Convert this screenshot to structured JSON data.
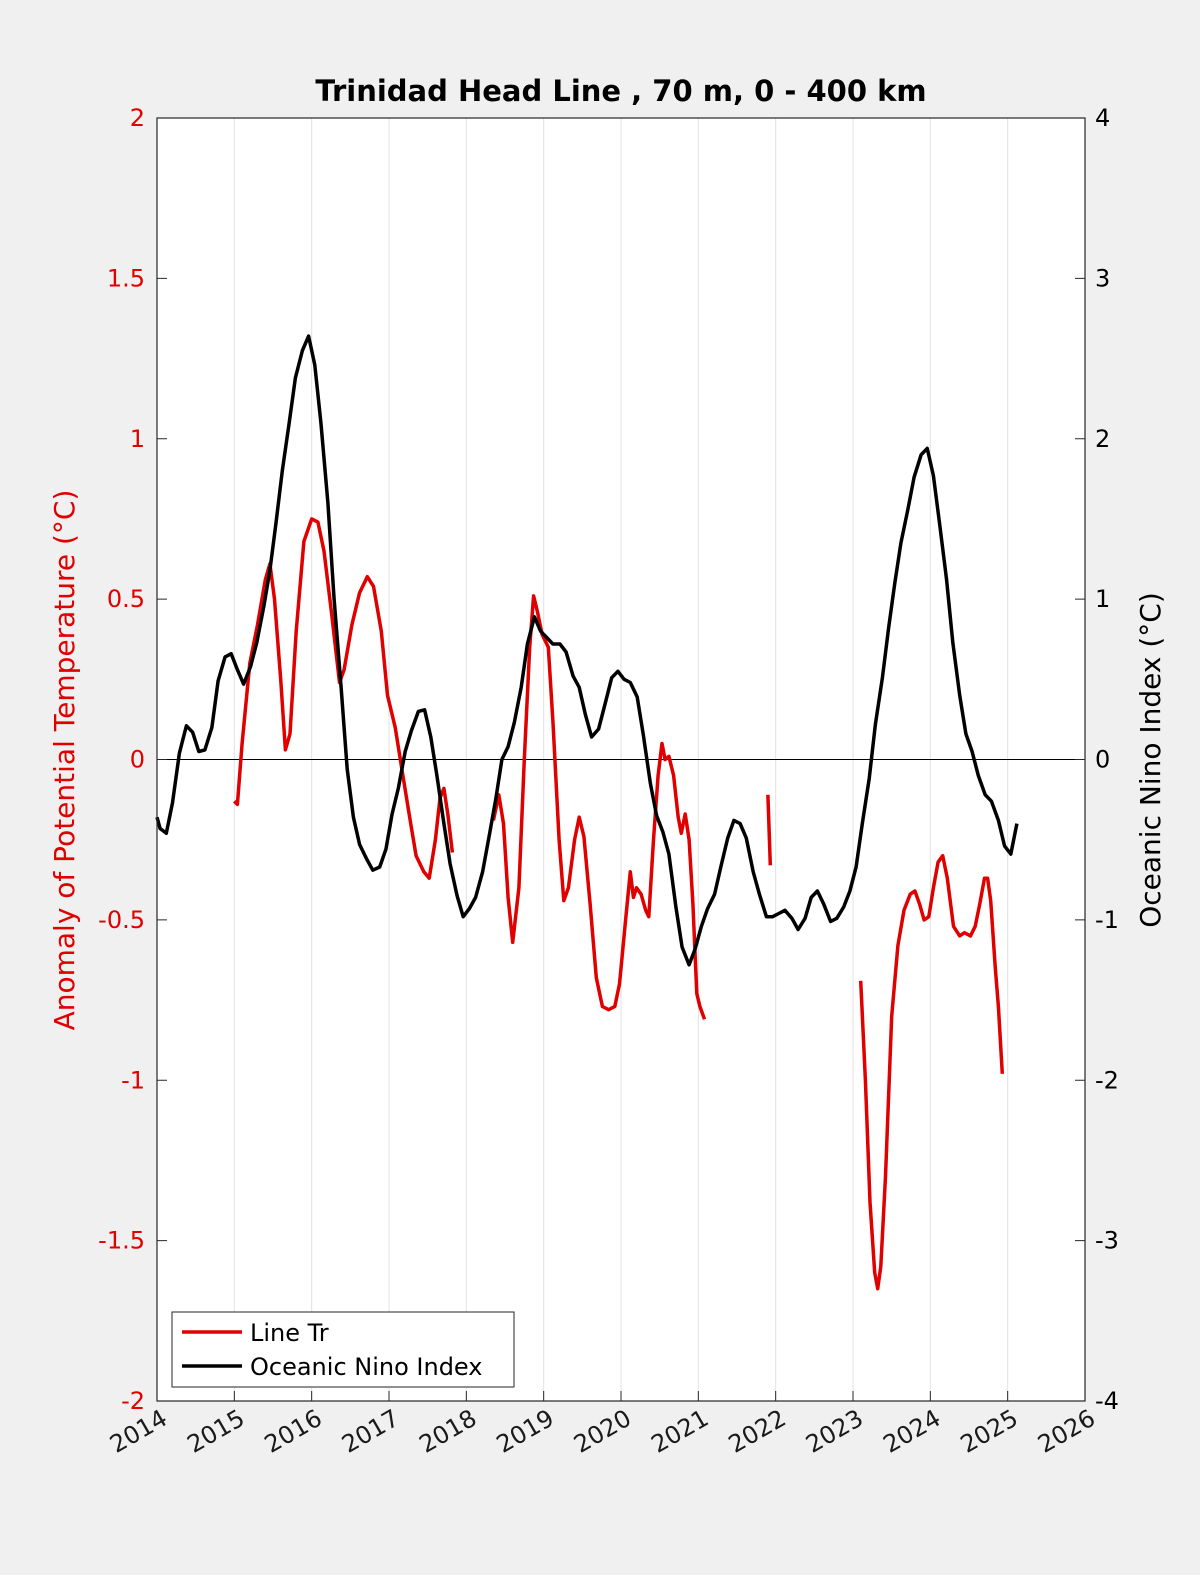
{
  "chart_data": {
    "type": "line",
    "title": "Trinidad Head Line , 70 m, 0 - 400 km",
    "ylabel_left": "Anomaly of Potential Temperature (°C)",
    "ylabel_right": "Oceanic Nino Index (°C)",
    "xlabel": "",
    "xlim": [
      2014,
      2026
    ],
    "ylim_left": [
      -2,
      2
    ],
    "ylim_right": [
      -4,
      4
    ],
    "x_ticks": [
      "2014",
      "2015",
      "2016",
      "2017",
      "2018",
      "2019",
      "2020",
      "2021",
      "2022",
      "2023",
      "2024",
      "2025",
      "2026"
    ],
    "y_ticks_left": [
      "-2",
      "-1.5",
      "-1",
      "-0.5",
      "0",
      "0.5",
      "1",
      "1.5",
      "2"
    ],
    "y_ticks_right": [
      "-4",
      "-3",
      "-2",
      "-1",
      "0",
      "1",
      "2",
      "3",
      "4"
    ],
    "grid": "vertical",
    "zero_line": true,
    "legend_position": "bottom-left",
    "colors": {
      "line_tr": "#e00000",
      "oni": "#000000"
    },
    "series": [
      {
        "name": "Line Tr",
        "axis": "left",
        "color": "#e00000",
        "segments": [
          [
            [
              2015.0,
              -0.13
            ],
            [
              2015.04,
              -0.14
            ],
            [
              2015.1,
              0.05
            ],
            [
              2015.2,
              0.3
            ],
            [
              2015.3,
              0.42
            ],
            [
              2015.4,
              0.56
            ],
            [
              2015.46,
              0.61
            ],
            [
              2015.52,
              0.5
            ],
            [
              2015.6,
              0.25
            ],
            [
              2015.66,
              0.03
            ],
            [
              2015.72,
              0.08
            ],
            [
              2015.8,
              0.4
            ],
            [
              2015.9,
              0.68
            ],
            [
              2016.0,
              0.75
            ],
            [
              2016.08,
              0.74
            ],
            [
              2016.16,
              0.65
            ],
            [
              2016.26,
              0.45
            ],
            [
              2016.36,
              0.24
            ],
            [
              2016.42,
              0.28
            ],
            [
              2016.52,
              0.42
            ],
            [
              2016.62,
              0.52
            ],
            [
              2016.72,
              0.57
            ],
            [
              2016.8,
              0.54
            ],
            [
              2016.9,
              0.4
            ],
            [
              2016.98,
              0.2
            ],
            [
              2017.08,
              0.1
            ],
            [
              2017.18,
              -0.05
            ],
            [
              2017.28,
              -0.2
            ],
            [
              2017.35,
              -0.3
            ],
            [
              2017.45,
              -0.35
            ],
            [
              2017.52,
              -0.37
            ],
            [
              2017.6,
              -0.25
            ],
            [
              2017.66,
              -0.12
            ],
            [
              2017.71,
              -0.09
            ],
            [
              2017.76,
              -0.17
            ],
            [
              2017.82,
              -0.29
            ]
          ],
          [
            [
              2018.35,
              -0.19
            ],
            [
              2018.42,
              -0.11
            ],
            [
              2018.48,
              -0.2
            ],
            [
              2018.54,
              -0.43
            ],
            [
              2018.6,
              -0.57
            ],
            [
              2018.68,
              -0.4
            ],
            [
              2018.75,
              0.0
            ],
            [
              2018.82,
              0.35
            ],
            [
              2018.87,
              0.51
            ],
            [
              2018.92,
              0.46
            ],
            [
              2018.98,
              0.39
            ],
            [
              2019.06,
              0.35
            ],
            [
              2019.12,
              0.12
            ],
            [
              2019.2,
              -0.25
            ],
            [
              2019.26,
              -0.44
            ],
            [
              2019.32,
              -0.4
            ],
            [
              2019.4,
              -0.25
            ],
            [
              2019.46,
              -0.18
            ],
            [
              2019.52,
              -0.24
            ],
            [
              2019.6,
              -0.45
            ],
            [
              2019.68,
              -0.68
            ],
            [
              2019.76,
              -0.77
            ],
            [
              2019.84,
              -0.78
            ],
            [
              2019.92,
              -0.77
            ],
            [
              2019.98,
              -0.7
            ],
            [
              2020.06,
              -0.5
            ],
            [
              2020.12,
              -0.35
            ],
            [
              2020.16,
              -0.43
            ],
            [
              2020.2,
              -0.4
            ],
            [
              2020.26,
              -0.42
            ],
            [
              2020.32,
              -0.47
            ],
            [
              2020.36,
              -0.49
            ],
            [
              2020.42,
              -0.25
            ],
            [
              2020.48,
              -0.05
            ],
            [
              2020.53,
              0.05
            ],
            [
              2020.57,
              0.0
            ],
            [
              2020.62,
              0.01
            ],
            [
              2020.68,
              -0.05
            ],
            [
              2020.74,
              -0.18
            ],
            [
              2020.78,
              -0.23
            ],
            [
              2020.83,
              -0.17
            ],
            [
              2020.88,
              -0.25
            ],
            [
              2020.93,
              -0.45
            ],
            [
              2020.98,
              -0.73
            ],
            [
              2021.02,
              -0.77
            ],
            [
              2021.08,
              -0.81
            ]
          ],
          [
            [
              2021.9,
              -0.11
            ],
            [
              2021.93,
              -0.33
            ]
          ],
          [
            [
              2023.1,
              -0.69
            ],
            [
              2023.16,
              -1.0
            ],
            [
              2023.22,
              -1.38
            ],
            [
              2023.28,
              -1.6
            ],
            [
              2023.32,
              -1.65
            ],
            [
              2023.36,
              -1.58
            ],
            [
              2023.42,
              -1.3
            ],
            [
              2023.5,
              -0.8
            ],
            [
              2023.58,
              -0.58
            ],
            [
              2023.66,
              -0.47
            ],
            [
              2023.74,
              -0.42
            ],
            [
              2023.8,
              -0.41
            ],
            [
              2023.86,
              -0.45
            ],
            [
              2023.92,
              -0.5
            ],
            [
              2023.98,
              -0.49
            ],
            [
              2024.04,
              -0.4
            ],
            [
              2024.1,
              -0.32
            ],
            [
              2024.16,
              -0.3
            ],
            [
              2024.22,
              -0.37
            ],
            [
              2024.3,
              -0.52
            ],
            [
              2024.38,
              -0.55
            ],
            [
              2024.44,
              -0.54
            ],
            [
              2024.52,
              -0.55
            ],
            [
              2024.58,
              -0.52
            ],
            [
              2024.64,
              -0.45
            ],
            [
              2024.7,
              -0.37
            ],
            [
              2024.74,
              -0.37
            ],
            [
              2024.78,
              -0.44
            ],
            [
              2024.84,
              -0.65
            ],
            [
              2024.88,
              -0.77
            ],
            [
              2024.93,
              -0.98
            ]
          ]
        ]
      },
      {
        "name": "Oceanic Nino Index",
        "axis": "right",
        "color": "#000000",
        "segments": [
          [
            [
              2014.0,
              -0.36
            ],
            [
              2014.04,
              -0.43
            ],
            [
              2014.12,
              -0.46
            ],
            [
              2014.2,
              -0.27
            ],
            [
              2014.29,
              0.04
            ],
            [
              2014.38,
              0.21
            ],
            [
              2014.46,
              0.17
            ],
            [
              2014.54,
              0.05
            ],
            [
              2014.62,
              0.06
            ],
            [
              2014.71,
              0.2
            ],
            [
              2014.79,
              0.49
            ],
            [
              2014.88,
              0.64
            ],
            [
              2014.96,
              0.66
            ],
            [
              2015.04,
              0.56
            ],
            [
              2015.12,
              0.47
            ],
            [
              2015.21,
              0.58
            ],
            [
              2015.29,
              0.73
            ],
            [
              2015.38,
              0.95
            ],
            [
              2015.46,
              1.18
            ],
            [
              2015.54,
              1.48
            ],
            [
              2015.62,
              1.8
            ],
            [
              2015.71,
              2.1
            ],
            [
              2015.79,
              2.38
            ],
            [
              2015.88,
              2.55
            ],
            [
              2015.96,
              2.64
            ],
            [
              2016.04,
              2.46
            ],
            [
              2016.12,
              2.1
            ],
            [
              2016.21,
              1.6
            ],
            [
              2016.29,
              1.0
            ],
            [
              2016.38,
              0.45
            ],
            [
              2016.46,
              -0.06
            ],
            [
              2016.54,
              -0.36
            ],
            [
              2016.62,
              -0.53
            ],
            [
              2016.71,
              -0.62
            ],
            [
              2016.79,
              -0.69
            ],
            [
              2016.88,
              -0.67
            ],
            [
              2016.96,
              -0.56
            ],
            [
              2017.04,
              -0.34
            ],
            [
              2017.12,
              -0.18
            ],
            [
              2017.21,
              0.05
            ],
            [
              2017.29,
              0.18
            ],
            [
              2017.38,
              0.3
            ],
            [
              2017.46,
              0.31
            ],
            [
              2017.54,
              0.14
            ],
            [
              2017.62,
              -0.1
            ],
            [
              2017.71,
              -0.4
            ],
            [
              2017.79,
              -0.65
            ],
            [
              2017.88,
              -0.85
            ],
            [
              2017.96,
              -0.98
            ],
            [
              2018.04,
              -0.93
            ],
            [
              2018.12,
              -0.86
            ],
            [
              2018.21,
              -0.7
            ],
            [
              2018.29,
              -0.49
            ],
            [
              2018.38,
              -0.25
            ],
            [
              2018.46,
              0.0
            ],
            [
              2018.54,
              0.08
            ],
            [
              2018.62,
              0.23
            ],
            [
              2018.71,
              0.45
            ],
            [
              2018.79,
              0.72
            ],
            [
              2018.88,
              0.89
            ],
            [
              2018.96,
              0.8
            ],
            [
              2019.04,
              0.76
            ],
            [
              2019.12,
              0.72
            ],
            [
              2019.21,
              0.72
            ],
            [
              2019.29,
              0.67
            ],
            [
              2019.38,
              0.52
            ],
            [
              2019.46,
              0.45
            ],
            [
              2019.54,
              0.28
            ],
            [
              2019.62,
              0.14
            ],
            [
              2019.71,
              0.19
            ],
            [
              2019.79,
              0.34
            ],
            [
              2019.88,
              0.51
            ],
            [
              2019.96,
              0.55
            ],
            [
              2020.04,
              0.5
            ],
            [
              2020.12,
              0.48
            ],
            [
              2020.21,
              0.39
            ],
            [
              2020.29,
              0.15
            ],
            [
              2020.38,
              -0.15
            ],
            [
              2020.46,
              -0.35
            ],
            [
              2020.54,
              -0.45
            ],
            [
              2020.62,
              -0.59
            ],
            [
              2020.71,
              -0.92
            ],
            [
              2020.79,
              -1.17
            ],
            [
              2020.88,
              -1.28
            ],
            [
              2020.96,
              -1.18
            ],
            [
              2021.04,
              -1.04
            ],
            [
              2021.12,
              -0.93
            ],
            [
              2021.21,
              -0.84
            ],
            [
              2021.29,
              -0.67
            ],
            [
              2021.38,
              -0.49
            ],
            [
              2021.46,
              -0.38
            ],
            [
              2021.54,
              -0.4
            ],
            [
              2021.62,
              -0.49
            ],
            [
              2021.71,
              -0.7
            ],
            [
              2021.79,
              -0.84
            ],
            [
              2021.88,
              -0.98
            ],
            [
              2021.96,
              -0.98
            ],
            [
              2022.04,
              -0.96
            ],
            [
              2022.12,
              -0.94
            ],
            [
              2022.21,
              -0.99
            ],
            [
              2022.29,
              -1.06
            ],
            [
              2022.38,
              -0.99
            ],
            [
              2022.46,
              -0.86
            ],
            [
              2022.54,
              -0.82
            ],
            [
              2022.62,
              -0.9
            ],
            [
              2022.71,
              -1.01
            ],
            [
              2022.79,
              -0.99
            ],
            [
              2022.88,
              -0.92
            ],
            [
              2022.96,
              -0.82
            ],
            [
              2023.04,
              -0.67
            ],
            [
              2023.12,
              -0.4
            ],
            [
              2023.21,
              -0.12
            ],
            [
              2023.29,
              0.22
            ],
            [
              2023.38,
              0.51
            ],
            [
              2023.46,
              0.82
            ],
            [
              2023.54,
              1.1
            ],
            [
              2023.62,
              1.35
            ],
            [
              2023.71,
              1.56
            ],
            [
              2023.79,
              1.76
            ],
            [
              2023.88,
              1.9
            ],
            [
              2023.96,
              1.94
            ],
            [
              2024.04,
              1.77
            ],
            [
              2024.12,
              1.47
            ],
            [
              2024.21,
              1.12
            ],
            [
              2024.29,
              0.73
            ],
            [
              2024.38,
              0.4
            ],
            [
              2024.46,
              0.16
            ],
            [
              2024.54,
              0.05
            ],
            [
              2024.62,
              -0.1
            ],
            [
              2024.71,
              -0.22
            ],
            [
              2024.79,
              -0.26
            ],
            [
              2024.88,
              -0.38
            ],
            [
              2024.96,
              -0.54
            ],
            [
              2025.04,
              -0.59
            ],
            [
              2025.12,
              -0.4
            ]
          ]
        ]
      }
    ]
  }
}
